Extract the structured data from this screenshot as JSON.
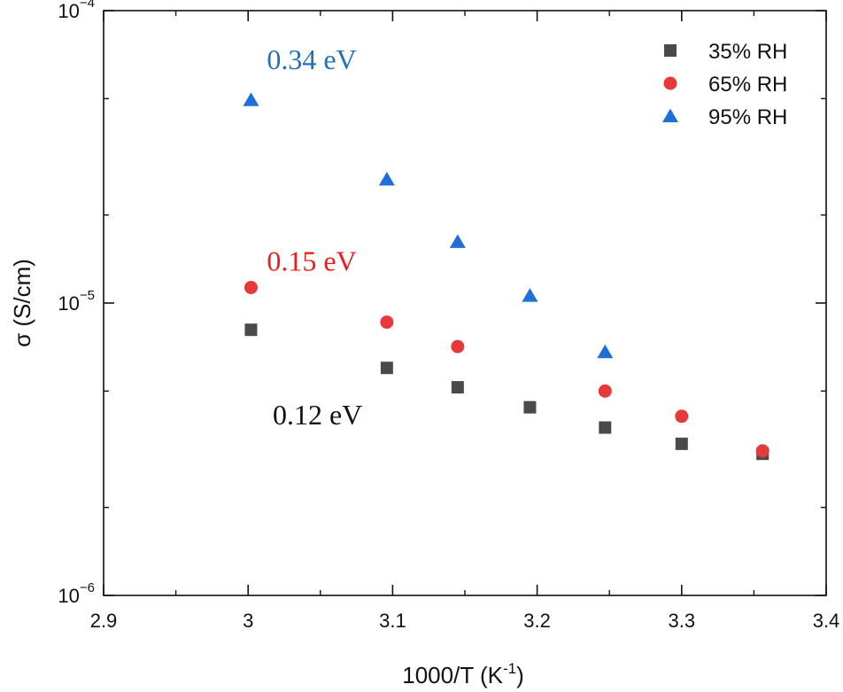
{
  "chart_data": {
    "type": "scatter",
    "xlabel": "1000/T (K",
    "xlabel_sup": "-1",
    "xlabel_end": ")",
    "ylabel": "σ (S/cm)",
    "xlim": [
      2.9,
      3.4
    ],
    "ylim": [
      1e-06,
      0.0001
    ],
    "y_scale": "log",
    "grid": false,
    "legend_position": "top-right",
    "x_ticks": [
      "2.9",
      "3",
      "3.1",
      "3.2",
      "3.3",
      "3.4"
    ],
    "y_ticks": [
      {
        "base": "10",
        "exp": "−6",
        "value": 1e-06
      },
      {
        "base": "10",
        "exp": "−5",
        "value": 1e-05
      },
      {
        "base": "10",
        "exp": "−4",
        "value": 0.0001
      }
    ],
    "series": [
      {
        "name": "35% RH",
        "marker": "square",
        "color": "#4a4a4a",
        "x": [
          3.002,
          3.096,
          3.145,
          3.195,
          3.247,
          3.3,
          3.356
        ],
        "y": [
          8.1e-06,
          6e-06,
          5.15e-06,
          4.4e-06,
          3.75e-06,
          3.3e-06,
          3.05e-06
        ]
      },
      {
        "name": "65% RH",
        "marker": "circle",
        "color": "#e63a3a",
        "x": [
          3.002,
          3.096,
          3.145,
          3.247,
          3.3,
          3.356
        ],
        "y": [
          1.13e-05,
          8.6e-06,
          7.1e-06,
          5e-06,
          4.1e-06,
          3.12e-06
        ]
      },
      {
        "name": "95% RH",
        "marker": "triangle",
        "color": "#1f6fd9",
        "x": [
          3.002,
          3.096,
          3.145,
          3.195,
          3.247
        ],
        "y": [
          4.95e-05,
          2.65e-05,
          1.62e-05,
          1.06e-05,
          6.8e-06
        ]
      }
    ],
    "annotations": [
      {
        "text": "0.34 eV",
        "color": "#1f72b8"
      },
      {
        "text": "0.15 eV",
        "color": "#ee1c1c"
      },
      {
        "text": "0.12 eV",
        "color": "#111111"
      }
    ]
  }
}
